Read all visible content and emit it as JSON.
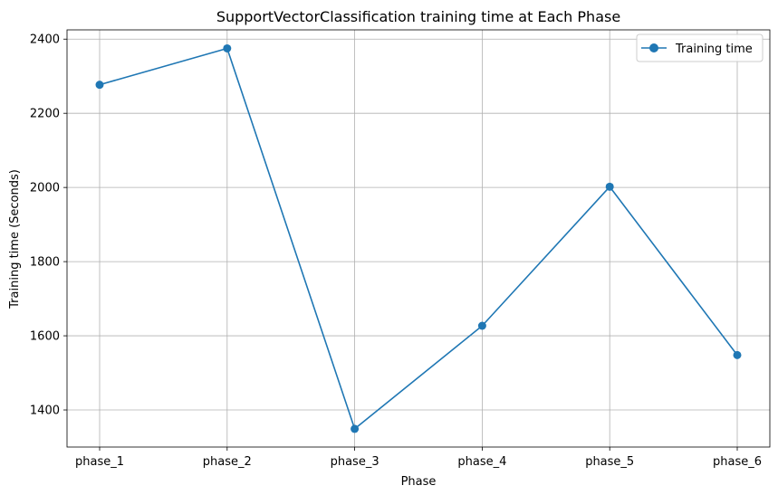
{
  "chart_data": {
    "type": "line",
    "title": "SupportVectorClassification training time at Each Phase",
    "xlabel": "Phase",
    "ylabel": "Training time (Seconds)",
    "categories": [
      "phase_1",
      "phase_2",
      "phase_3",
      "phase_4",
      "phase_5",
      "phase_6"
    ],
    "series": [
      {
        "name": "Training time",
        "values": [
          2277,
          2375,
          1349,
          1627,
          2002,
          1548
        ],
        "color": "#1f77b4",
        "marker": "circle"
      }
    ],
    "ylim": [
      1300,
      2425
    ],
    "yticks": [
      1400,
      1600,
      1800,
      2000,
      2200,
      2400
    ],
    "grid": true,
    "legend_position": "top-right"
  }
}
